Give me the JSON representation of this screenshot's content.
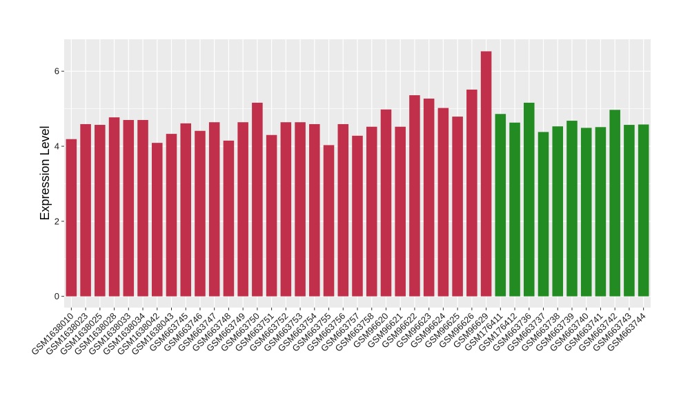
{
  "chart_data": {
    "type": "bar",
    "ylabel": "Expression Level",
    "xlabel": "",
    "ylim": [
      -0.3,
      6.85
    ],
    "y_ticks": [
      0,
      2,
      4,
      6
    ],
    "grid": true,
    "legend": "none",
    "colors": {
      "series_a": "#C0304A",
      "series_b": "#228B22",
      "panel": "#EBEBEB",
      "gridline": "#FFFFFF"
    },
    "categories": [
      "GSM1638010",
      "GSM1638023",
      "GSM1638025",
      "GSM1638028",
      "GSM1638033",
      "GSM1638034",
      "GSM1638042",
      "GSM1638043",
      "GSM663745",
      "GSM663746",
      "GSM663747",
      "GSM663748",
      "GSM663749",
      "GSM663750",
      "GSM663751",
      "GSM663752",
      "GSM663753",
      "GSM663754",
      "GSM663755",
      "GSM663756",
      "GSM663757",
      "GSM663758",
      "GSM96620",
      "GSM96621",
      "GSM96622",
      "GSM96623",
      "GSM96624",
      "GSM96625",
      "GSM96626",
      "GSM96629",
      "GSM176411",
      "GSM176412",
      "GSM663736",
      "GSM663737",
      "GSM663738",
      "GSM663739",
      "GSM663740",
      "GSM663741",
      "GSM663742",
      "GSM663743",
      "GSM663744"
    ],
    "values": [
      4.19,
      4.59,
      4.57,
      4.77,
      4.7,
      4.7,
      4.09,
      4.33,
      4.61,
      4.41,
      4.64,
      4.15,
      4.64,
      5.16,
      4.3,
      4.64,
      4.64,
      4.59,
      4.03,
      4.59,
      4.28,
      4.52,
      4.98,
      4.52,
      5.36,
      5.27,
      5.02,
      4.79,
      5.51,
      6.53,
      4.86,
      4.63,
      5.16,
      4.38,
      4.53,
      4.68,
      4.49,
      4.51,
      4.97,
      4.57,
      4.58
    ],
    "groups": [
      "a",
      "a",
      "a",
      "a",
      "a",
      "a",
      "a",
      "a",
      "a",
      "a",
      "a",
      "a",
      "a",
      "a",
      "a",
      "a",
      "a",
      "a",
      "a",
      "a",
      "a",
      "a",
      "a",
      "a",
      "a",
      "a",
      "a",
      "a",
      "a",
      "a",
      "b",
      "b",
      "b",
      "b",
      "b",
      "b",
      "b",
      "b",
      "b",
      "b",
      "b"
    ]
  }
}
